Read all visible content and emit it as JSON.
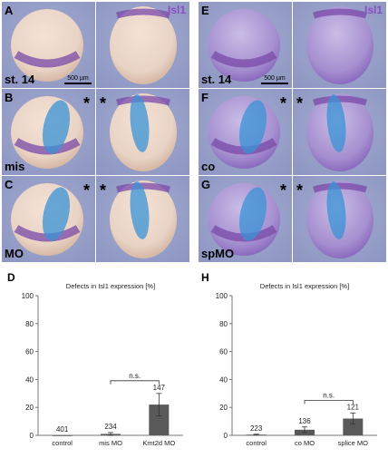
{
  "figure": {
    "left_block": {
      "stain_label": "Isl1",
      "stage_label": "st. 14",
      "scale_bar": "500 µm",
      "panels": [
        {
          "letter": "A",
          "row_label": "st. 14",
          "asterisk": false
        },
        {
          "letter": "B",
          "row_label": "mis",
          "asterisk": true
        },
        {
          "letter": "C",
          "row_label": "MO",
          "asterisk": true
        }
      ]
    },
    "right_block": {
      "stain_label": "Isl1",
      "stage_label": "st. 14",
      "scale_bar": "500 µm",
      "panels": [
        {
          "letter": "E",
          "row_label": "st. 14",
          "asterisk": false
        },
        {
          "letter": "F",
          "row_label": "co",
          "asterisk": true
        },
        {
          "letter": "G",
          "row_label": "spMO",
          "asterisk": true
        }
      ]
    },
    "asterisk": "*",
    "colors": {
      "tile_background": "#8e97c2",
      "embryo_tan": "#e9d3c4",
      "stain_purple": "#7a4aa8",
      "injection_blue": "#3a93d6",
      "isl1_label": "#8a4fc2",
      "bar": "#595959"
    }
  },
  "chart_data": [
    {
      "panel": "D",
      "type": "bar",
      "title": "Defects in Isl1 expression [%]",
      "categories": [
        "control",
        "mis MO",
        "Kmt2d MO"
      ],
      "values": [
        0,
        1,
        22
      ],
      "errors": [
        0,
        1,
        8
      ],
      "n_labels": [
        "401",
        "234",
        "147"
      ],
      "ylim": [
        0,
        100
      ],
      "yticks": [
        0,
        20,
        40,
        60,
        80,
        100
      ],
      "significance": {
        "text": "n.s.",
        "between": [
          1,
          2
        ]
      }
    },
    {
      "panel": "H",
      "type": "bar",
      "title": "Defects in Isl1 expression [%]",
      "categories": [
        "control",
        "co MO",
        "splice MO"
      ],
      "values": [
        0.5,
        4,
        12
      ],
      "errors": [
        0.3,
        2,
        4
      ],
      "n_labels": [
        "223",
        "136",
        "121"
      ],
      "ylim": [
        0,
        100
      ],
      "yticks": [
        0,
        20,
        40,
        60,
        80,
        100
      ],
      "significance": {
        "text": "n.s.",
        "between": [
          1,
          2
        ]
      }
    }
  ]
}
